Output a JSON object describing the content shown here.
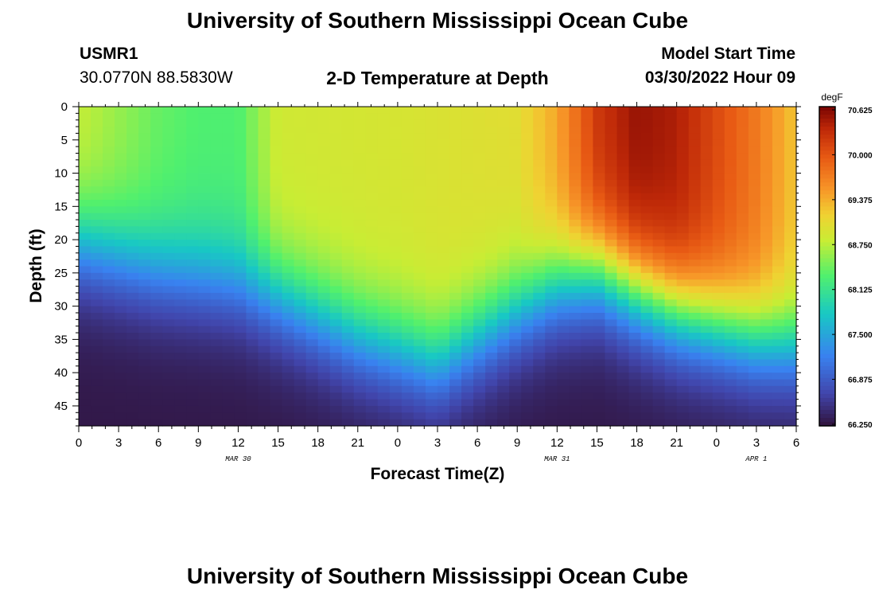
{
  "header": {
    "title": "University of Southern Mississippi Ocean Cube",
    "station_id": "USMR1",
    "coordinates": "30.0770N  88.5830W",
    "plot_title": "2-D Temperature at Depth",
    "model_start_label": "Model Start Time",
    "model_start_value": "03/30/2022 Hour 09"
  },
  "footer": {
    "title": "University of Southern Mississippi Ocean Cube"
  },
  "chart_data": {
    "type": "heatmap",
    "xlabel": "Forecast Time(Z)",
    "ylabel": "Depth (ft)",
    "x_range_hours": [
      0,
      54
    ],
    "x_tick_labels": [
      "0",
      "3",
      "6",
      "9",
      "12",
      "15",
      "18",
      "21",
      "0",
      "3",
      "6",
      "9",
      "12",
      "15",
      "18",
      "21",
      "0",
      "3",
      "6"
    ],
    "date_labels": [
      {
        "text": "MAR 30",
        "hour": 12
      },
      {
        "text": "MAR 31",
        "hour": 36
      },
      {
        "text": "APR 1",
        "hour": 51
      }
    ],
    "y_range": [
      0,
      48
    ],
    "y_ticks": [
      0,
      5,
      10,
      15,
      20,
      25,
      30,
      35,
      40,
      45
    ],
    "colorbar": {
      "unit": "degF",
      "min": 66.25,
      "max": 70.625,
      "ticks": [
        "70.625",
        "70.000",
        "69.375",
        "68.750",
        "68.125",
        "67.500",
        "66.875",
        "66.250"
      ]
    },
    "thermocline_depth_ft": [
      {
        "hour": 0,
        "depth": 21
      },
      {
        "hour": 3,
        "depth": 23
      },
      {
        "hour": 6,
        "depth": 25
      },
      {
        "hour": 9,
        "depth": 26
      },
      {
        "hour": 12,
        "depth": 27
      },
      {
        "hour": 15,
        "depth": 29
      },
      {
        "hour": 18,
        "depth": 32
      },
      {
        "hour": 21,
        "depth": 35
      },
      {
        "hour": 24,
        "depth": 37
      },
      {
        "hour": 27,
        "depth": 39
      },
      {
        "hour": 30,
        "depth": 35
      },
      {
        "hour": 33,
        "depth": 31
      },
      {
        "hour": 36,
        "depth": 27
      },
      {
        "hour": 39,
        "depth": 25
      },
      {
        "hour": 42,
        "depth": 28
      },
      {
        "hour": 45,
        "depth": 31
      },
      {
        "hour": 48,
        "depth": 33
      },
      {
        "hour": 51,
        "depth": 35
      },
      {
        "hour": 54,
        "depth": 36
      }
    ],
    "surface_temperature_degF": [
      {
        "hour": 0,
        "value": 68.8
      },
      {
        "hour": 6,
        "value": 68.4
      },
      {
        "hour": 9,
        "value": 68.3
      },
      {
        "hour": 12,
        "value": 68.3
      },
      {
        "hour": 15,
        "value": 68.85
      },
      {
        "hour": 24,
        "value": 68.9
      },
      {
        "hour": 33,
        "value": 69.0
      },
      {
        "hour": 36,
        "value": 69.4
      },
      {
        "hour": 39,
        "value": 70.2
      },
      {
        "hour": 42,
        "value": 70.5
      },
      {
        "hour": 45,
        "value": 70.4
      },
      {
        "hour": 51,
        "value": 69.7
      },
      {
        "hour": 54,
        "value": 69.2
      }
    ],
    "bottom_temperature_degF": 66.3
  }
}
